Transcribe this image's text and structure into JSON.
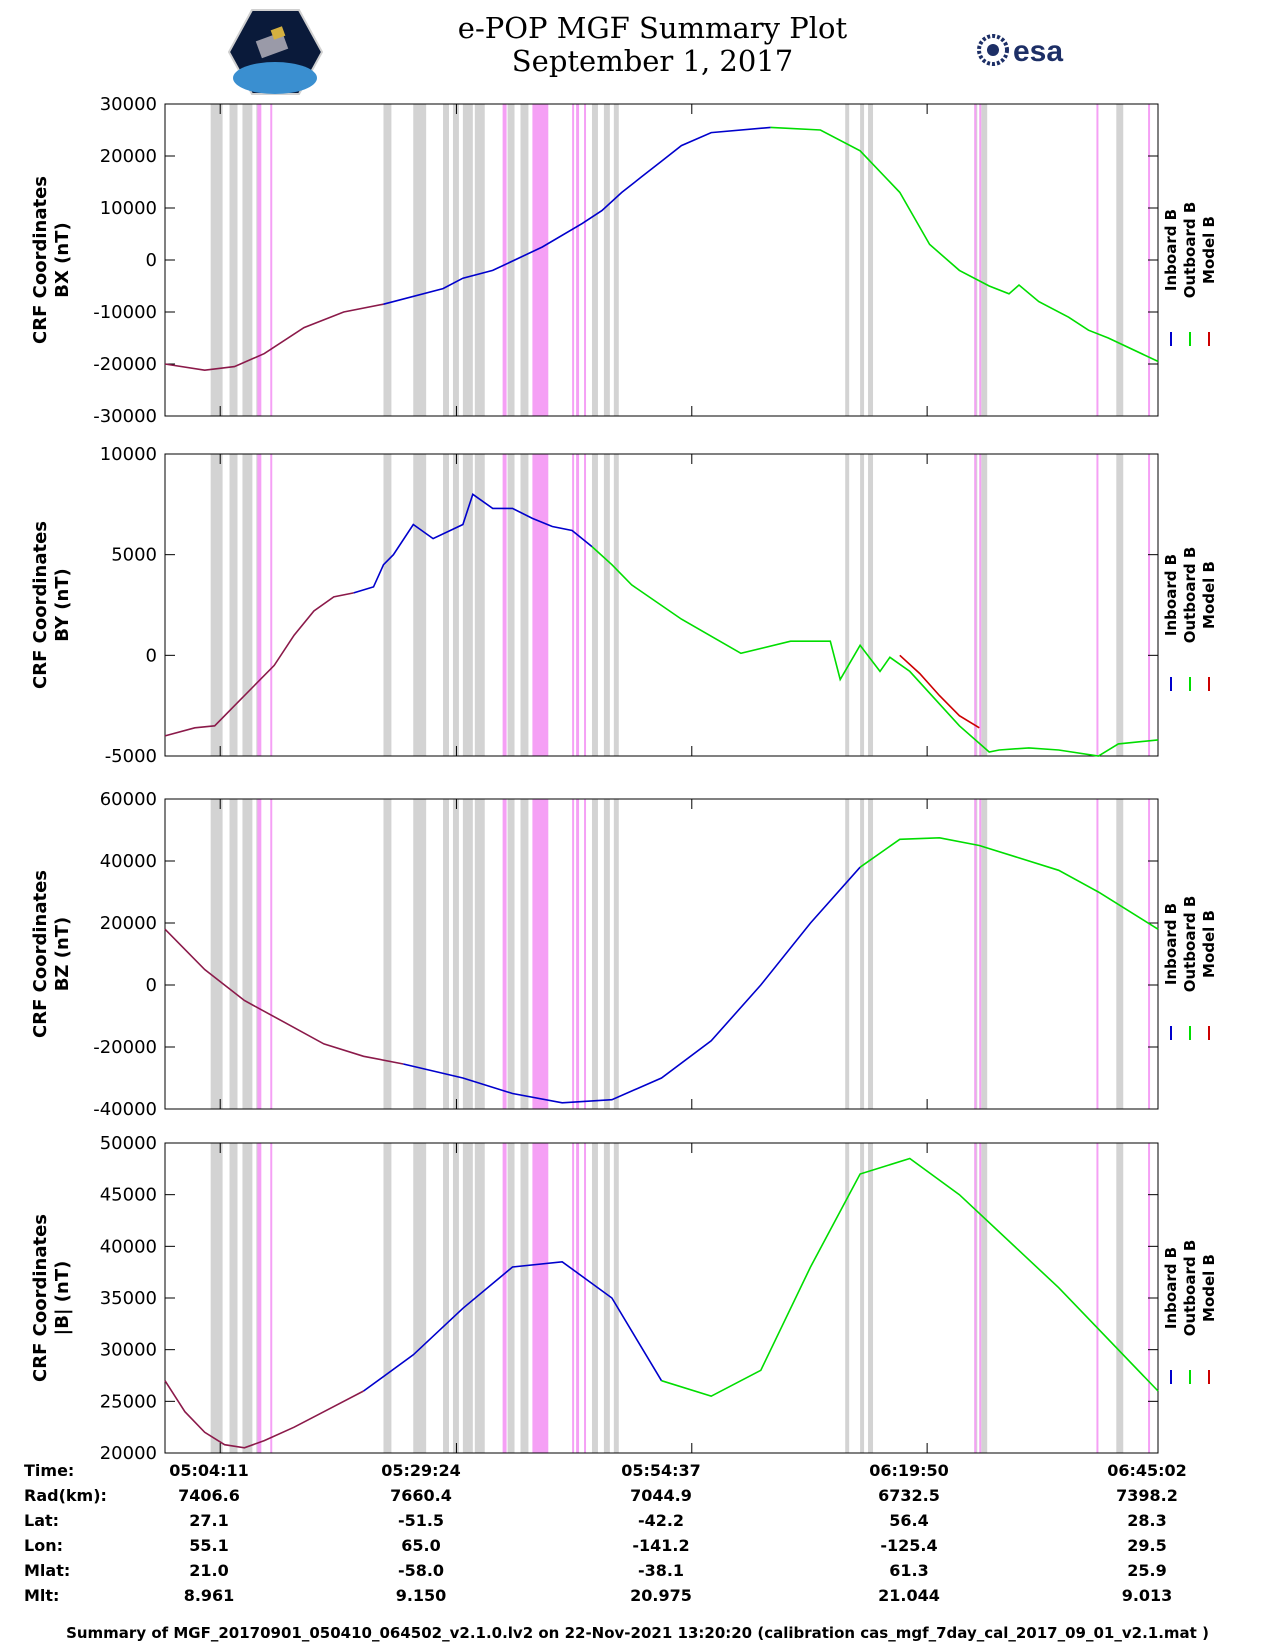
{
  "page": {
    "title_line1": "e-POP MGF Summary Plot",
    "title_line2": "September 1, 2017",
    "logo_left": "cassiope-logo",
    "logo_right_text": "esa",
    "footer": "Summary of MGF_20170901_050410_064502_v2.1.0.lv2 on 22-Nov-2021 13:20:20 (calibration cas_mgf_7day_cal_2017_09_01_v2.1.mat )"
  },
  "colors": {
    "inboard": "#0000cc",
    "outboard": "#00dd00",
    "model": "#cc0000",
    "overlap": "#8b1a4a",
    "gray_band": "#d3d3d3",
    "pink_band": "#f5a0f5"
  },
  "chart_data": [
    {
      "type": "line",
      "ylabel_line1": "CRF Coordinates",
      "ylabel_line2": "BX (nT)",
      "ylim": [
        -30000,
        30000
      ],
      "yticks": [
        -30000,
        -20000,
        -10000,
        0,
        10000,
        20000,
        30000
      ],
      "ytick_labels": [
        "-30000",
        "-20000",
        "-10000",
        "0",
        "10000",
        "20000",
        "30000"
      ],
      "legend": [
        "Inboard B",
        "Outboard B",
        "Model B"
      ],
      "series": [
        {
          "name": "Inboard B",
          "color_key": "overlap",
          "x": [
            0.0,
            0.04,
            0.07,
            0.1,
            0.14,
            0.18,
            0.22
          ],
          "y": [
            -20000,
            -21200,
            -20500,
            -18000,
            -13000,
            -10000,
            -8500
          ]
        },
        {
          "name": "Inboard B",
          "color_key": "inboard",
          "x": [
            0.22,
            0.28,
            0.3,
            0.33,
            0.38,
            0.42,
            0.44,
            0.46,
            0.48,
            0.5,
            0.52,
            0.55,
            0.61
          ],
          "y": [
            -8500,
            -5500,
            -3500,
            -2000,
            2500,
            7000,
            9500,
            13000,
            16000,
            19000,
            22000,
            24500,
            25500
          ]
        },
        {
          "name": "Outboard B",
          "color_key": "outboard",
          "x": [
            0.61,
            0.66,
            0.7,
            0.74,
            0.77,
            0.8,
            0.83,
            0.85,
            0.86,
            0.88,
            0.91,
            0.93,
            0.95,
            1.0
          ],
          "y": [
            25500,
            25000,
            21000,
            13000,
            3000,
            -2000,
            -5000,
            -6500,
            -4800,
            -8000,
            -11000,
            -13500,
            -15000,
            -19500
          ]
        }
      ]
    },
    {
      "type": "line",
      "ylabel_line1": "CRF Coordinates",
      "ylabel_line2": "BY (nT)",
      "ylim": [
        -5000,
        10000
      ],
      "yticks": [
        -5000,
        0,
        5000,
        10000
      ],
      "ytick_labels": [
        "-5000",
        "0",
        "5000",
        "10000"
      ],
      "legend": [
        "Inboard B",
        "Outboard B",
        "Model B"
      ],
      "series": [
        {
          "name": "Inboard B",
          "color_key": "overlap",
          "x": [
            0.0,
            0.03,
            0.05,
            0.07,
            0.09,
            0.11,
            0.13,
            0.15,
            0.17,
            0.19
          ],
          "y": [
            -4000,
            -3600,
            -3500,
            -2500,
            -1500,
            -500,
            1000,
            2200,
            2900,
            3100
          ]
        },
        {
          "name": "Inboard B",
          "color_key": "inboard",
          "x": [
            0.19,
            0.21,
            0.22,
            0.23,
            0.25,
            0.27,
            0.3,
            0.31,
            0.33,
            0.35,
            0.37,
            0.39,
            0.41,
            0.43
          ],
          "y": [
            3100,
            3400,
            4500,
            5000,
            6500,
            5800,
            6500,
            8000,
            7300,
            7300,
            6800,
            6400,
            6200,
            5400
          ]
        },
        {
          "name": "Outboard B",
          "color_key": "outboard",
          "x": [
            0.43,
            0.45,
            0.47,
            0.52,
            0.58,
            0.63,
            0.67,
            0.68,
            0.7,
            0.72,
            0.73,
            0.75,
            0.8,
            0.83,
            0.84,
            0.87,
            0.9,
            0.94,
            0.96,
            1.0
          ],
          "y": [
            5400,
            4500,
            3500,
            1800,
            100,
            700,
            700,
            -1200,
            500,
            -800,
            -100,
            -800,
            -3500,
            -4800,
            -4700,
            -4600,
            -4700,
            -5000,
            -4400,
            -4200
          ]
        },
        {
          "name": "Model B",
          "color_key": "model",
          "x": [
            0.74,
            0.76,
            0.78,
            0.8,
            0.82
          ],
          "y": [
            0,
            -900,
            -2000,
            -3000,
            -3600
          ]
        }
      ]
    },
    {
      "type": "line",
      "ylabel_line1": "CRF Coordinates",
      "ylabel_line2": "BZ (nT)",
      "ylim": [
        -40000,
        60000
      ],
      "yticks": [
        -40000,
        -20000,
        0,
        20000,
        40000,
        60000
      ],
      "ytick_labels": [
        "-40000",
        "-20000",
        "0",
        "20000",
        "40000",
        "60000"
      ],
      "legend": [
        "Inboard B",
        "Outboard B",
        "Model B"
      ],
      "series": [
        {
          "name": "Inboard B",
          "color_key": "overlap",
          "x": [
            0.0,
            0.04,
            0.08,
            0.12,
            0.16,
            0.2,
            0.24
          ],
          "y": [
            18000,
            5000,
            -5000,
            -12000,
            -19000,
            -23000,
            -25500
          ]
        },
        {
          "name": "Inboard B",
          "color_key": "inboard",
          "x": [
            0.24,
            0.3,
            0.35,
            0.4,
            0.45,
            0.5,
            0.55,
            0.6,
            0.65,
            0.7
          ],
          "y": [
            -25500,
            -30000,
            -35000,
            -38000,
            -37000,
            -30000,
            -18000,
            0,
            20000,
            38000
          ]
        },
        {
          "name": "Outboard B",
          "color_key": "outboard",
          "x": [
            0.7,
            0.74,
            0.78,
            0.82,
            0.86,
            0.9,
            0.94,
            1.0
          ],
          "y": [
            38000,
            47000,
            47500,
            45000,
            41000,
            37000,
            30000,
            18000
          ]
        }
      ]
    },
    {
      "type": "line",
      "ylabel_line1": "CRF Coordinates",
      "ylabel_line2": "|B| (nT)",
      "ylim": [
        20000,
        50000
      ],
      "yticks": [
        20000,
        25000,
        30000,
        35000,
        40000,
        45000,
        50000
      ],
      "ytick_labels": [
        "20000",
        "25000",
        "30000",
        "35000",
        "40000",
        "45000",
        "50000"
      ],
      "legend": [
        "Inboard B",
        "Outboard B",
        "Model B"
      ],
      "series": [
        {
          "name": "Inboard B",
          "color_key": "overlap",
          "x": [
            0.0,
            0.02,
            0.04,
            0.06,
            0.08,
            0.1,
            0.13,
            0.16,
            0.2
          ],
          "y": [
            27000,
            24000,
            22000,
            20800,
            20500,
            21200,
            22500,
            24000,
            26000
          ]
        },
        {
          "name": "Inboard B",
          "color_key": "inboard",
          "x": [
            0.2,
            0.25,
            0.3,
            0.35,
            0.4,
            0.45,
            0.5
          ],
          "y": [
            26000,
            29500,
            34000,
            38000,
            38500,
            35000,
            27000
          ]
        },
        {
          "name": "Outboard B",
          "color_key": "outboard",
          "x": [
            0.5,
            0.55,
            0.6,
            0.65,
            0.7,
            0.75,
            0.8,
            0.9,
            1.0
          ],
          "y": [
            27000,
            25500,
            28000,
            38000,
            47000,
            48500,
            45000,
            36000,
            26000
          ]
        }
      ]
    }
  ],
  "xtick_labels": [
    "05:04:11",
    "05:29:24",
    "05:54:37",
    "06:19:50",
    "06:45:02"
  ],
  "info_table": {
    "rows": [
      {
        "label": "Time:",
        "values": [
          "05:04:11",
          "05:29:24",
          "05:54:37",
          "06:19:50",
          "06:45:02"
        ]
      },
      {
        "label": "Rad(km):",
        "values": [
          "7406.6",
          "7660.4",
          "7044.9",
          "6732.5",
          "7398.2"
        ]
      },
      {
        "label": "Lat:",
        "values": [
          "27.1",
          "-51.5",
          "-42.2",
          "56.4",
          "28.3"
        ]
      },
      {
        "label": "Lon:",
        "values": [
          "55.1",
          "65.0",
          "-141.2",
          "-125.4",
          "29.5"
        ]
      },
      {
        "label": "Mlat:",
        "values": [
          "21.0",
          "-58.0",
          "-38.1",
          "61.3",
          "25.9"
        ]
      },
      {
        "label": "Mlt:",
        "values": [
          "8.961",
          "9.150",
          "20.975",
          "21.044",
          "9.013"
        ]
      }
    ]
  },
  "bands": {
    "gray": [
      [
        0.046,
        0.058
      ],
      [
        0.065,
        0.073
      ],
      [
        0.078,
        0.088
      ],
      [
        0.092,
        0.096
      ],
      [
        0.22,
        0.228
      ],
      [
        0.25,
        0.263
      ],
      [
        0.28,
        0.286
      ],
      [
        0.29,
        0.296
      ],
      [
        0.3,
        0.31
      ],
      [
        0.312,
        0.322
      ],
      [
        0.345,
        0.352
      ],
      [
        0.358,
        0.366
      ],
      [
        0.378,
        0.383
      ],
      [
        0.43,
        0.436
      ],
      [
        0.442,
        0.448
      ],
      [
        0.452,
        0.457
      ],
      [
        0.685,
        0.689
      ],
      [
        0.7,
        0.704
      ],
      [
        0.708,
        0.713
      ],
      [
        0.815,
        0.818
      ],
      [
        0.822,
        0.828
      ],
      [
        0.958,
        0.965
      ]
    ],
    "pink": [
      [
        0.093,
        0.097
      ],
      [
        0.106,
        0.108
      ],
      [
        0.34,
        0.344
      ],
      [
        0.37,
        0.386
      ],
      [
        0.41,
        0.412
      ],
      [
        0.414,
        0.417
      ],
      [
        0.422,
        0.424
      ],
      [
        0.815,
        0.817
      ],
      [
        0.82,
        0.822
      ],
      [
        0.938,
        0.94
      ],
      [
        0.99,
        0.992
      ]
    ]
  }
}
